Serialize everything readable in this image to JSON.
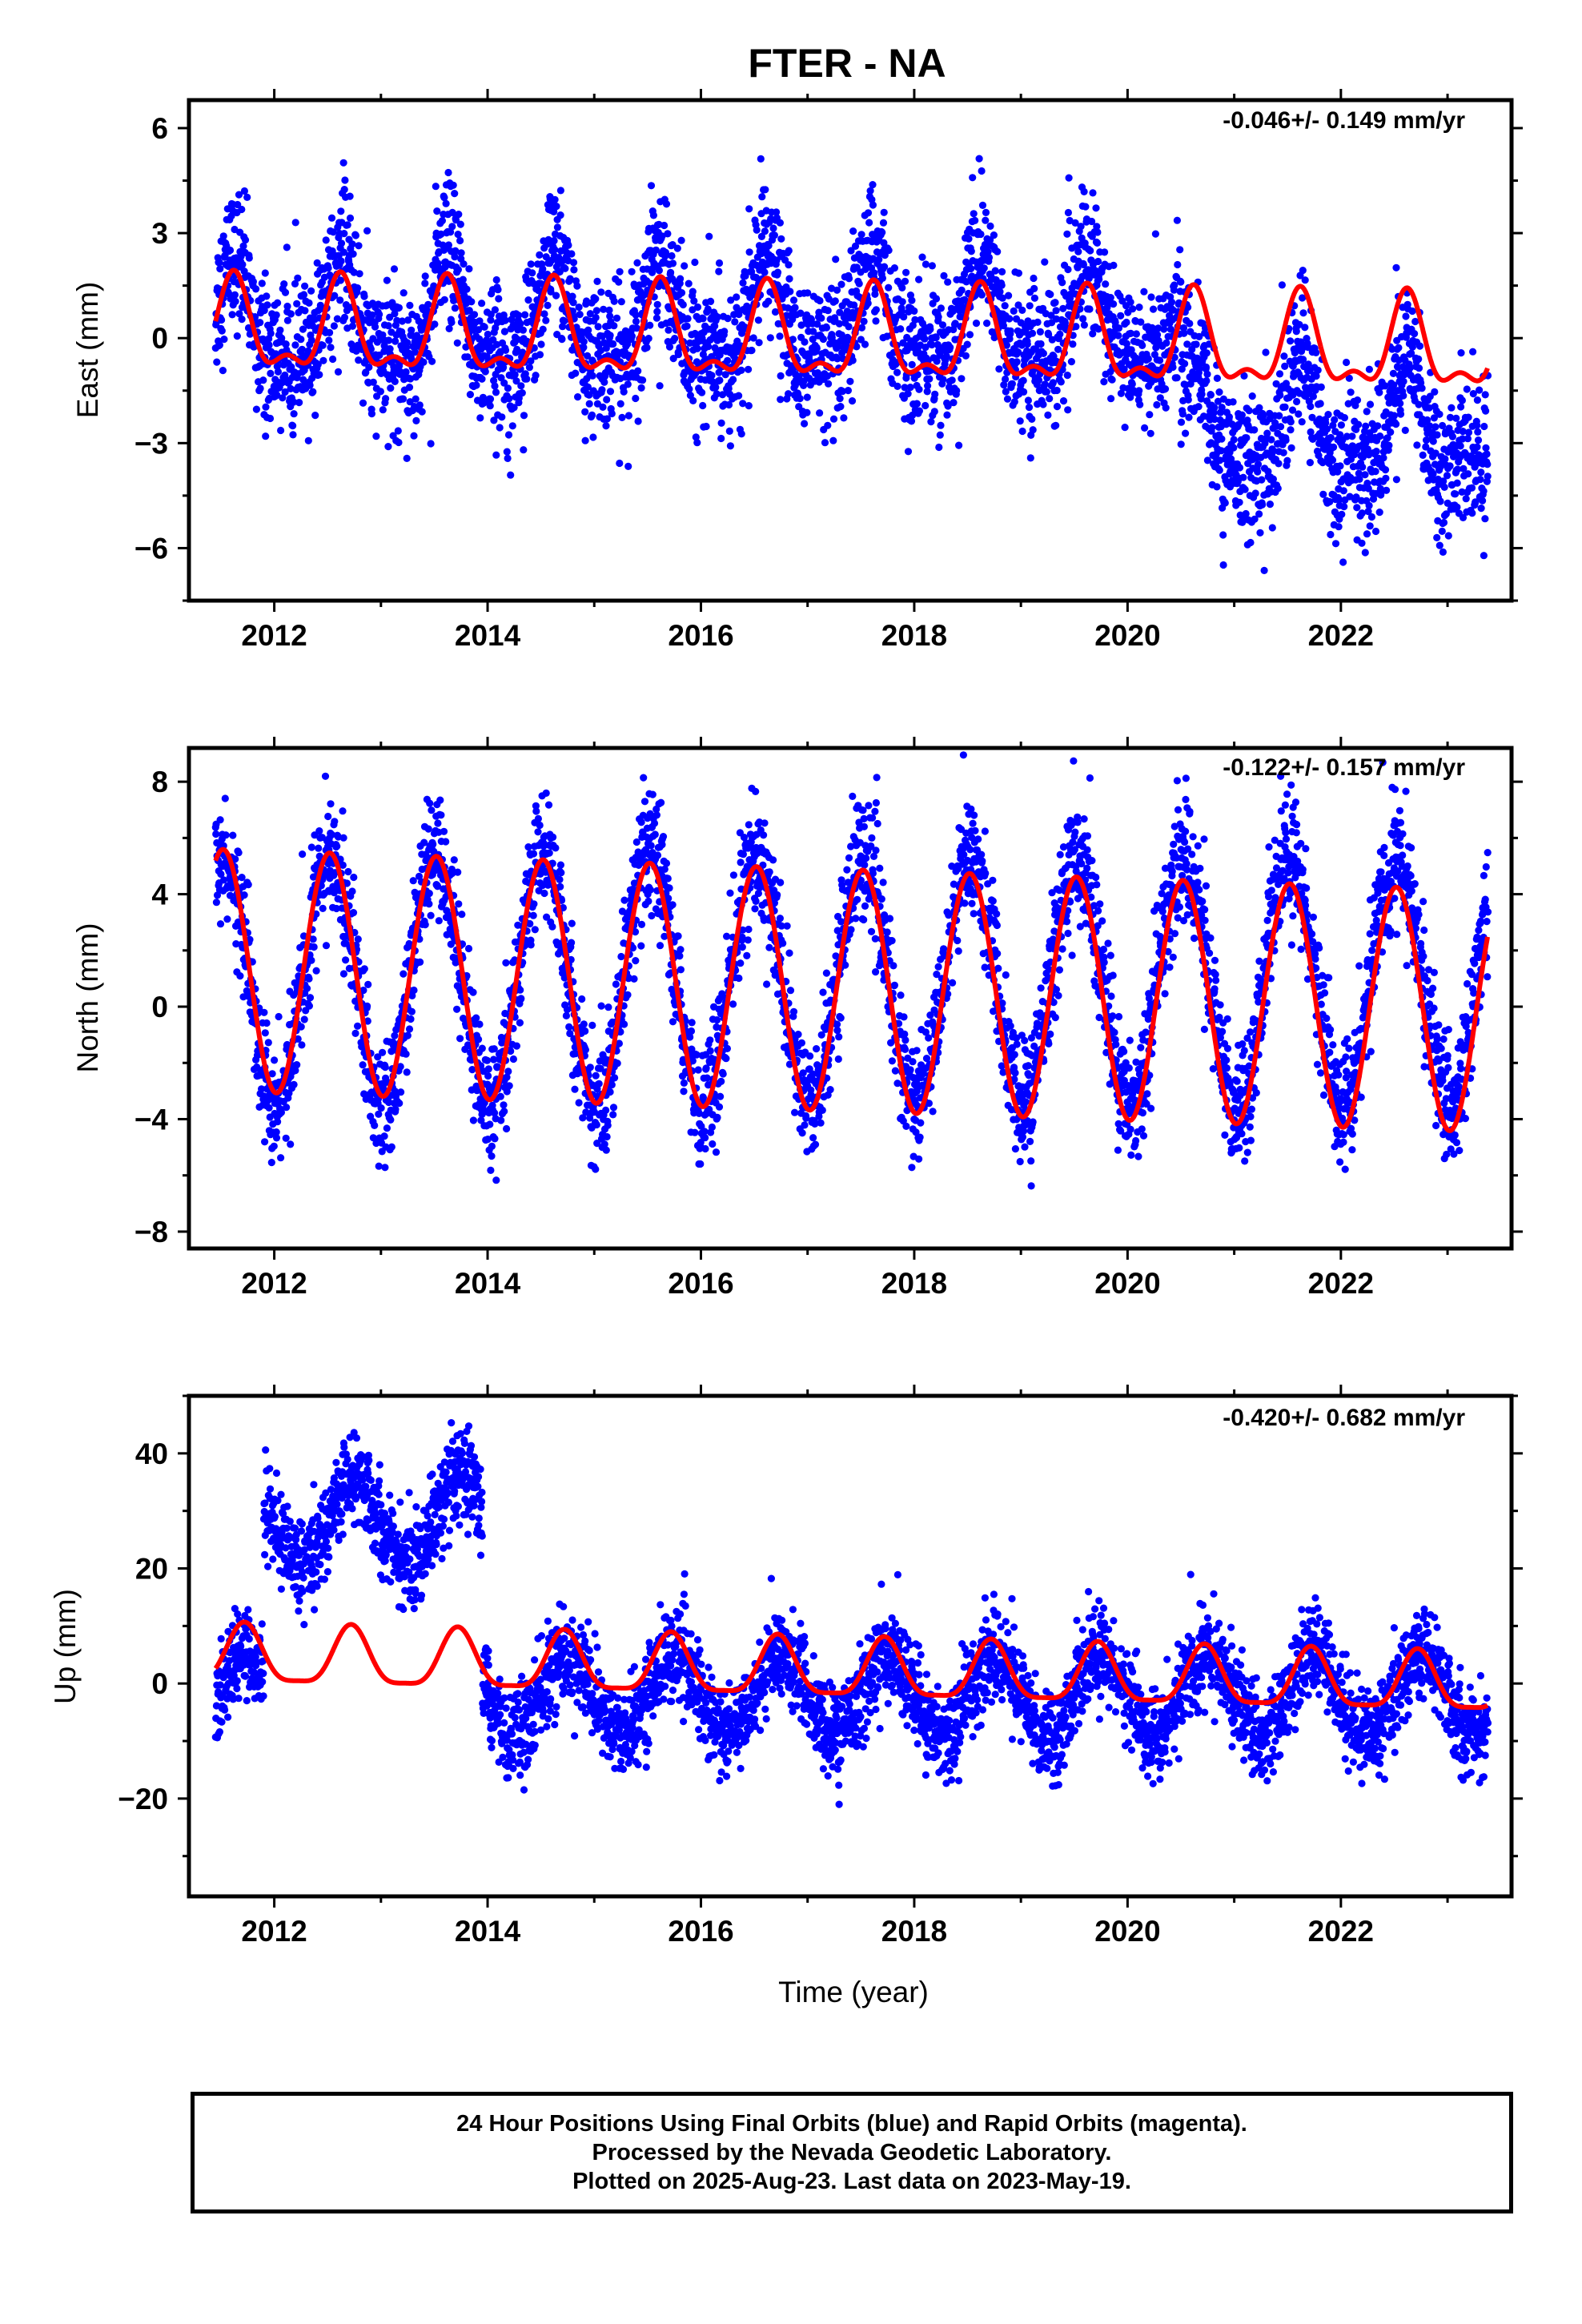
{
  "chart_data": [
    {
      "type": "scatter",
      "title": "FTER - NA",
      "ylabel": "East (mm)",
      "xlabel": "",
      "rate_label": "-0.046+/- 0.149 mm/yr",
      "xlim": [
        2011.2,
        2023.6
      ],
      "ylim": [
        -7.5,
        6.8
      ],
      "xticks": [
        2012,
        2014,
        2016,
        2018,
        2020,
        2022
      ],
      "yticks": [
        -6,
        -3,
        0,
        3,
        6
      ],
      "grid": false,
      "series": [
        {
          "type": "scatter",
          "color": "#0000ff",
          "description": "24 hour positions, final orbits",
          "x_range": [
            2011.45,
            2023.38
          ],
          "model": {
            "offset_before": 0.4,
            "offset_after_2020_5": -2.6,
            "annual_amp": 1.4,
            "semiannual_amp": 0.6,
            "phase_peak": 0.62,
            "scatter_sd": 1.0
          }
        },
        {
          "type": "line",
          "color": "#ff0000",
          "description": "model fit",
          "x_range": [
            2011.45,
            2023.38
          ],
          "model": {
            "mean": 0.2,
            "trend_per_yr": -0.046,
            "annual_amp": 1.2,
            "semiannual_amp": 0.55,
            "phase_peak": 0.62
          }
        }
      ]
    },
    {
      "type": "scatter",
      "title": "",
      "ylabel": "North (mm)",
      "xlabel": "",
      "rate_label": "-0.122+/- 0.157 mm/yr",
      "xlim": [
        2011.2,
        2023.6
      ],
      "ylim": [
        -8.6,
        9.2
      ],
      "xticks": [
        2012,
        2014,
        2016,
        2018,
        2020,
        2022
      ],
      "yticks": [
        -8,
        -4,
        0,
        4,
        8
      ],
      "grid": false,
      "series": [
        {
          "type": "scatter",
          "color": "#0000ff",
          "description": "24 hour positions, final orbits",
          "x_range": [
            2011.45,
            2023.38
          ],
          "model": {
            "mean": 0.9,
            "annual_amp": 4.4,
            "phase_peak": 0.52,
            "scatter_sd": 1.1
          }
        },
        {
          "type": "line",
          "color": "#ff0000",
          "description": "model fit",
          "x_range": [
            2011.45,
            2023.38
          ],
          "model": {
            "mean": 1.3,
            "trend_per_yr": -0.122,
            "annual_amp": 4.3,
            "phase_peak": 0.52
          }
        }
      ]
    },
    {
      "type": "scatter",
      "title": "",
      "ylabel": "Up (mm)",
      "xlabel": "Time (year)",
      "rate_label": "-0.420+/- 0.682 mm/yr",
      "xlim": [
        2011.2,
        2023.6
      ],
      "ylim": [
        -37,
        50
      ],
      "xticks": [
        2012,
        2014,
        2016,
        2018,
        2020,
        2022
      ],
      "yticks": [
        -20,
        0,
        20,
        40
      ],
      "grid": false,
      "series": [
        {
          "type": "scatter",
          "color": "#0000ff",
          "description": "24 hour positions, final orbits",
          "x_range": [
            2011.45,
            2023.38
          ],
          "model": {
            "offset_2011_9_to_2013_95": 30,
            "mean": -2,
            "annual_amp": 7,
            "phase_peak": 0.75,
            "scatter_sd": 4
          }
        },
        {
          "type": "line",
          "color": "#ff0000",
          "description": "model fit",
          "x_range": [
            2011.45,
            2023.38
          ],
          "model": {
            "mean": 4.5,
            "trend_per_yr": -0.42,
            "annual_amp": 5,
            "semiannual_amp": 1.3,
            "phase_peak": 0.72
          }
        }
      ]
    }
  ],
  "caption": {
    "line1": "24 Hour Positions Using Final Orbits (blue) and Rapid Orbits (magenta).",
    "line2": "Processed by the Nevada Geodetic Laboratory.",
    "line3": "Plotted on 2025-Aug-23. Last data on 2023-May-19."
  }
}
